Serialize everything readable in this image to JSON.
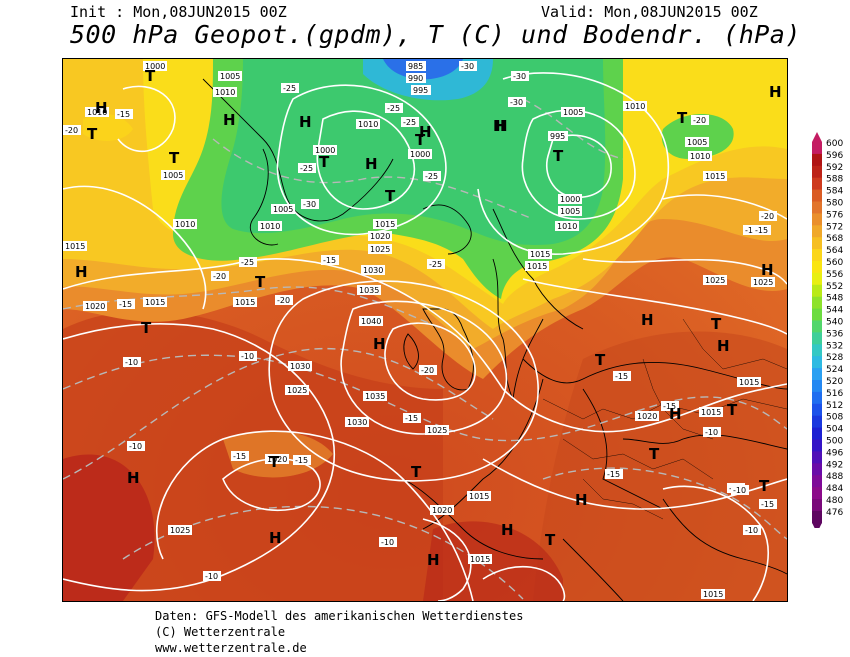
{
  "header": {
    "init": "Init : Mon,08JUN2015 00Z",
    "valid": "Valid: Mon,08JUN2015 00Z",
    "title": "500 hPa Geopot.(gpdm), T (C) und Bodendr. (hPa)"
  },
  "footer": {
    "line1": "Daten: GFS-Modell des amerikanischen Wetterdienstes",
    "line2": "(C) Wetterzentrale",
    "line3": "www.wetterzentrale.de"
  },
  "legend": {
    "labels": [
      "600",
      "596",
      "592",
      "588",
      "584",
      "580",
      "576",
      "572",
      "568",
      "564",
      "560",
      "556",
      "552",
      "548",
      "544",
      "540",
      "536",
      "532",
      "528",
      "524",
      "520",
      "516",
      "512",
      "508",
      "504",
      "500",
      "496",
      "492",
      "488",
      "484",
      "480",
      "476"
    ],
    "colors": [
      "#c41c62",
      "#b01414",
      "#bd2318",
      "#ce3a1e",
      "#da5c24",
      "#e2752c",
      "#ea8f2c",
      "#f0a82a",
      "#f6bf22",
      "#fbd61a",
      "#fae512",
      "#e8ef12",
      "#b9ea18",
      "#8ee22c",
      "#6cdc40",
      "#52d66c",
      "#3fcf9a",
      "#34c8c4",
      "#2ebae2",
      "#2aa0f2",
      "#2488f2",
      "#206ef0",
      "#1c52ea",
      "#1a38de",
      "#1c20d2",
      "#3414c6",
      "#5010b8",
      "#6a0ca8",
      "#7e0a98",
      "#8c0a8a",
      "#7a087a",
      "#5e0660"
    ]
  },
  "map": {
    "pressure_labels": [
      "1000",
      "1005",
      "1010",
      "985",
      "990",
      "995",
      "1010",
      "1005",
      "1010",
      "1000",
      "995",
      "1005",
      "1000",
      "1010",
      "1005",
      "1015",
      "1010",
      "1015",
      "1005",
      "1010",
      "1015",
      "1020",
      "1025",
      "1030",
      "1035",
      "1040",
      "1015",
      "1020",
      "1025",
      "1015",
      "1030",
      "1025",
      "1035",
      "1030",
      "1025",
      "1020",
      "1015",
      "1020",
      "1015",
      "1025",
      "1015",
      "1015",
      "1020",
      "1015",
      "1015",
      "1025",
      "1010",
      "1015",
      "1000",
      "1005",
      "1010"
    ],
    "temp_labels": [
      "-30",
      "-30",
      "-25",
      "-25",
      "-25",
      "-30",
      "-25",
      "-30",
      "-20",
      "-25",
      "-20",
      "-20",
      "-25",
      "-20",
      "-15",
      "-15",
      "-25",
      "-15",
      "-10",
      "-20",
      "-10",
      "-15",
      "-15",
      "-10",
      "-10",
      "-15",
      "-15",
      "-10",
      "-10",
      "-15",
      "-10",
      "-20",
      "-15",
      "-15",
      "-15",
      "-10",
      "-10",
      "-15"
    ],
    "highs": [
      "H",
      "H",
      "H",
      "H",
      "H",
      "H",
      "H",
      "H",
      "H",
      "H",
      "H",
      "H",
      "H",
      "H",
      "H",
      "H",
      "H",
      "H",
      "H"
    ],
    "lows": [
      "T",
      "T",
      "T",
      "T",
      "T",
      "T",
      "T",
      "T",
      "T",
      "T",
      "T",
      "T",
      "T",
      "T",
      "T",
      "T",
      "T",
      "T"
    ]
  }
}
